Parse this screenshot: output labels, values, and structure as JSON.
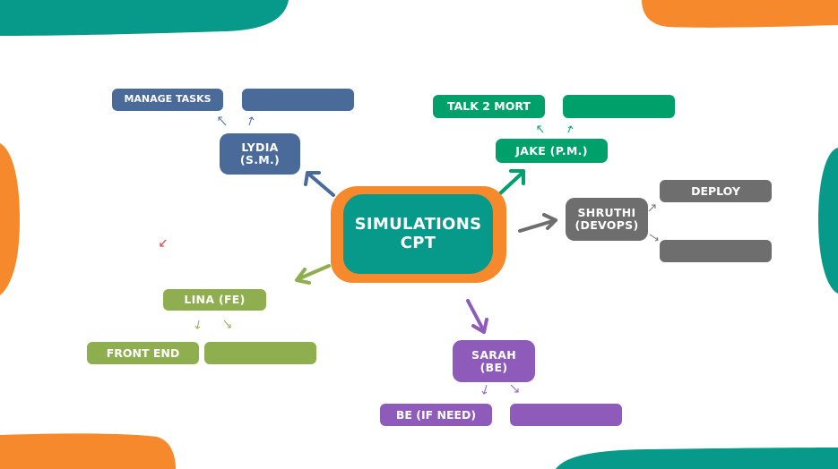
{
  "center": {
    "line1": "SIMULATIONS",
    "line2": "CPT"
  },
  "people": {
    "lydia": {
      "line1": "LYDIA",
      "line2": "(S.M.)"
    },
    "jake": {
      "label": "JAKE (P.M.)"
    },
    "shruthi": {
      "line1": "SHRUTHI",
      "line2": "(DEVOPS)"
    },
    "lina": {
      "label": "LINA (FE)"
    },
    "sarah": {
      "line1": "SARAH",
      "line2": "(BE)"
    }
  },
  "tasks": {
    "lydia": [
      "MANAGE TASKS",
      ""
    ],
    "jake": [
      "TALK 2 MORT",
      ""
    ],
    "shruthi": [
      "DEPLOY",
      ""
    ],
    "lina": [
      "FRONT END",
      ""
    ],
    "sarah": [
      "BE (IF NEED)",
      ""
    ]
  },
  "colors": {
    "blue": "#4a6b9a",
    "green": "#00a06a",
    "grey": "#6e6e6e",
    "olive": "#8fae4f",
    "purple": "#8e5bbb",
    "center_fill": "#079a8a",
    "center_border": "#f5892b",
    "orange": "#f5892b",
    "teal": "#079a8a"
  }
}
